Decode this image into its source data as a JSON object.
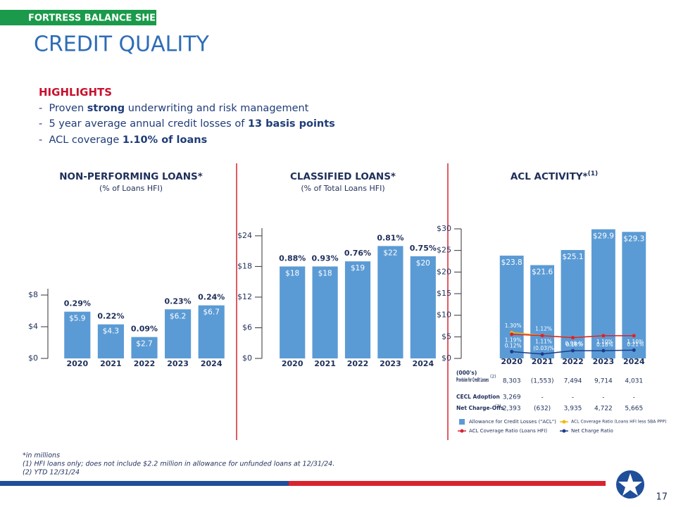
{
  "header": {
    "tag": "FORTRESS BALANCE SHEET",
    "title": "CREDIT QUALITY"
  },
  "highlights": {
    "heading": "HIGHLIGHTS",
    "items": [
      [
        {
          "text": "-  Proven ",
          "bold": false
        },
        {
          "text": "strong",
          "bold": true
        },
        {
          "text": " underwriting and risk management",
          "bold": false
        }
      ],
      [
        {
          "text": "-  5 year average annual credit losses of ",
          "bold": false
        },
        {
          "text": "13 basis points",
          "bold": true
        }
      ],
      [
        {
          "text": "-  ACL coverage ",
          "bold": false
        },
        {
          "text": "1.10% of loans",
          "bold": true
        }
      ]
    ]
  },
  "chart_data": [
    {
      "type": "bar",
      "title": "NON-PERFORMING LOANS*",
      "subtitle": "(% of Loans HFI)",
      "categories": [
        "2020",
        "2021",
        "2022",
        "2023",
        "2024"
      ],
      "values": [
        5.9,
        4.3,
        2.7,
        6.2,
        6.7
      ],
      "value_labels": [
        "$5.9",
        "$4.3",
        "$2.7",
        "$6.2",
        "$6.7"
      ],
      "ratio_labels": [
        "0.29%",
        "0.22%",
        "0.09%",
        "0.23%",
        "0.24%"
      ],
      "color": "#5b9bd5",
      "ylim": [
        0,
        8.8
      ],
      "yticks": [
        {
          "value": 0,
          "label": "$0"
        },
        {
          "value": 4,
          "label": "$4"
        },
        {
          "value": 8,
          "label": "$8"
        }
      ],
      "grid": false
    },
    {
      "type": "bar",
      "title": "CLASSIFIED LOANS*",
      "subtitle": "(% of Total Loans HFI)",
      "categories": [
        "2020",
        "2021",
        "2022",
        "2023",
        "2024"
      ],
      "values": [
        18,
        18,
        19,
        22,
        20
      ],
      "value_labels": [
        "$18",
        "$18",
        "$19",
        "$22",
        "$20"
      ],
      "ratio_labels": [
        "0.88%",
        "0.93%",
        "0.76%",
        "0.81%",
        "0.75%"
      ],
      "color": "#5b9bd5",
      "ylim": [
        0,
        25.5
      ],
      "yticks": [
        {
          "value": 0,
          "label": "$0"
        },
        {
          "value": 6,
          "label": "$6"
        },
        {
          "value": 12,
          "label": "$12"
        },
        {
          "value": 18,
          "label": "$18"
        },
        {
          "value": 24,
          "label": "$24"
        }
      ],
      "grid": false
    },
    {
      "type": "combo",
      "title": "ACL ACTIVITY*",
      "title_note": "(1)",
      "categories": [
        "2020",
        "2021",
        "2022",
        "2023",
        "2024"
      ],
      "ylim": [
        0,
        30
      ],
      "yticks": [
        {
          "value": 0,
          "label": "$0"
        },
        {
          "value": 5,
          "label": "$5"
        },
        {
          "value": 10,
          "label": "$10"
        },
        {
          "value": 15,
          "label": "$15"
        },
        {
          "value": 20,
          "label": "$20"
        },
        {
          "value": 25,
          "label": "$25"
        },
        {
          "value": 30,
          "label": "$30"
        }
      ],
      "y2lim": [
        -0.3,
        7.7
      ],
      "grid": false,
      "series": [
        {
          "name": "Allowance for Credit Losses (\"ACL\")",
          "type": "bar",
          "color": "#5b9bd5",
          "values": [
            23.8,
            21.6,
            25.1,
            29.9,
            29.3
          ],
          "value_labels": [
            "$23.8",
            "$21.6",
            "$25.1",
            "$29.9",
            "$29.3"
          ]
        },
        {
          "name": "ACL Coverage Ratio (Loans HFI less SBA PPP)",
          "type": "line",
          "axis": "y2",
          "color": "#f2b800",
          "values": [
            1.3,
            1.12,
            0.98,
            1.1,
            1.1
          ],
          "value_labels": [
            "1.30%",
            "1.12%",
            null,
            null,
            null
          ]
        },
        {
          "name": "ACL Coverage Ratio (Loans HFI)",
          "type": "line",
          "axis": "y2",
          "color": "#d9232e",
          "values": [
            1.19,
            1.11,
            0.98,
            1.1,
            1.1
          ],
          "value_labels": [
            "1.19%",
            "1.11%",
            "0.98 %",
            "1.10%",
            "1.10%"
          ]
        },
        {
          "name": "Net Charge Ratio",
          "type": "line",
          "axis": "y2",
          "color": "#1f3c88",
          "values": [
            0.12,
            -0.03,
            0.18,
            0.18,
            0.21
          ],
          "value_labels": [
            "0.12%",
            "(0.03)%",
            "0.18%",
            "0.18%",
            "0.21%"
          ]
        }
      ],
      "table": {
        "unit": "(000's)",
        "rows": [
          {
            "label": "Provision for Credit Losses",
            "note": "(2)",
            "cells": [
              "8,303",
              "(1,553)",
              "7,494",
              "9,714",
              "4,031"
            ]
          },
          {
            "label": "CECL Adoption",
            "note": null,
            "cells": [
              "3,269",
              "-",
              "-",
              "-",
              "-"
            ]
          },
          {
            "label": "Net Charge-Offs",
            "note": "(2)",
            "cells": [
              "2,393",
              "(632)",
              "3,935",
              "4,722",
              "5,665"
            ]
          }
        ]
      }
    }
  ],
  "footnotes": [
    "*in millions",
    "(1) HFI loans only; does not include $2.2 million in allowance for unfunded loans at 12/31/24.",
    "(2) YTD 12/31/24"
  ],
  "page_number": "17"
}
